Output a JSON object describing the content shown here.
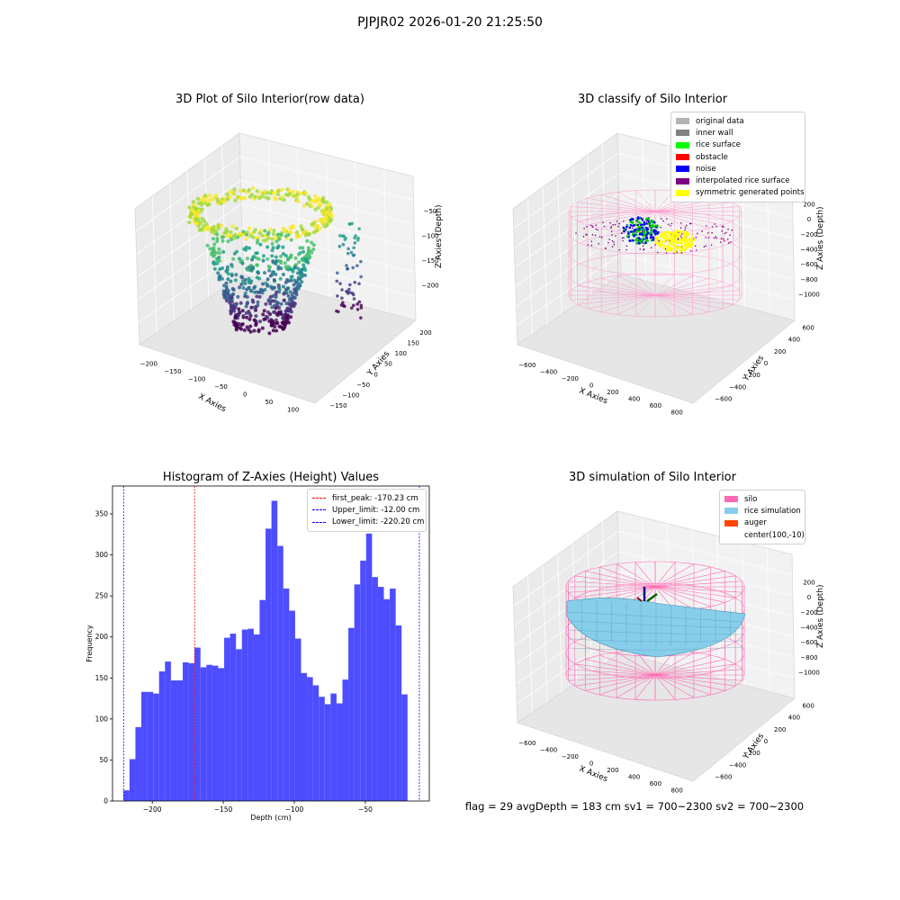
{
  "suptitle": "PJPJR02 2026-01-20 21:25:50",
  "status_text": "flag = 29  avgDepth = 183 cm  sv1 = 700~2300  sv2 = 700~2300",
  "chart_data": [
    {
      "type": "scatter3d",
      "title": "3D Plot of Silo Interior(row data)",
      "xlabel": "X Axies",
      "ylabel": "Y Axies",
      "zlabel": "Z Axies (Depth)",
      "x_ticks": [
        "−200",
        "−150",
        "−100",
        "−50",
        "0",
        "50",
        "100"
      ],
      "y_ticks": [
        "−150",
        "−100",
        "−50",
        "0",
        "50",
        "100",
        "150",
        "200"
      ],
      "z_ticks": [
        "−50",
        "−100",
        "−150",
        "−200"
      ],
      "xlim": [
        -230,
        130
      ],
      "ylim": [
        -160,
        230
      ],
      "zlim": [
        -230,
        -25
      ],
      "colormap": "viridis"
    },
    {
      "type": "scatter3d",
      "title": "3D classify of Silo Interior",
      "xlabel": "X Axies",
      "ylabel": "Y Axies",
      "zlabel": "Z Axies (Depth)",
      "x_ticks": [
        "−600",
        "−400",
        "−200",
        "0",
        "200",
        "400",
        "600",
        "800"
      ],
      "y_ticks": [
        "−600",
        "−400",
        "−200",
        "0",
        "200",
        "400",
        "600"
      ],
      "z_ticks": [
        "200",
        "0",
        "−200",
        "−400",
        "−600",
        "−800",
        "−1000"
      ],
      "legend": [
        {
          "label": "original data",
          "color": "#b3b3b3"
        },
        {
          "label": "inner wall",
          "color": "#808080"
        },
        {
          "label": "rice surface",
          "color": "#00ff00"
        },
        {
          "label": "obstacle",
          "color": "#ff0000"
        },
        {
          "label": "noise",
          "color": "#0000ff"
        },
        {
          "label": "interpolated rice surface",
          "color": "#800080"
        },
        {
          "label": "symmetric generated points",
          "color": "#ffff00"
        }
      ]
    },
    {
      "type": "bar",
      "title": "Histogram of Z-Axies (Height) Values",
      "xlabel": "Depth (cm)",
      "ylabel": "Frequency",
      "xlim": [
        -228,
        -5
      ],
      "ylim": [
        0,
        384
      ],
      "x_ticks": [
        -200,
        -150,
        -100,
        -50
      ],
      "x_tick_labels": [
        "−200",
        "−150",
        "−100",
        "−50"
      ],
      "y_ticks": [
        0,
        50,
        100,
        150,
        200,
        250,
        300,
        350
      ],
      "bin_start": -220.2,
      "bin_width": 4.164,
      "values": [
        13,
        51,
        90,
        133,
        133,
        131,
        158,
        170,
        147,
        147,
        169,
        168,
        187,
        163,
        166,
        165,
        162,
        199,
        204,
        185,
        209,
        210,
        203,
        245,
        332,
        366,
        311,
        259,
        232,
        198,
        156,
        151,
        141,
        127,
        118,
        131,
        119,
        148,
        211,
        264,
        293,
        326,
        273,
        261,
        246,
        259,
        214,
        130
      ],
      "bar_color": "#4d4dff",
      "vlines": [
        {
          "x": -170.23,
          "color": "#ff0000",
          "label": "first_peak: -170.23 cm"
        },
        {
          "x": -12.0,
          "color": "#0000ff",
          "label": "Upper_limit: -12.00 cm"
        },
        {
          "x": -220.2,
          "color": "#0000ff",
          "label": "Lower_limit: -220.20 cm"
        }
      ],
      "legend_position": "top-right"
    },
    {
      "type": "surface3d",
      "title": "3D simulation of Silo Interior",
      "xlabel": "X Axies",
      "ylabel": "Y Axies",
      "zlabel": "Z Axies (Depth)",
      "x_ticks": [
        "−600",
        "−400",
        "−200",
        "0",
        "200",
        "400",
        "600",
        "800"
      ],
      "y_ticks": [
        "−600",
        "−400",
        "−200",
        "0",
        "200",
        "400",
        "600"
      ],
      "z_ticks": [
        "200",
        "0",
        "−200",
        "−400",
        "−600",
        "−800",
        "−1000"
      ],
      "legend": [
        {
          "label": "silo",
          "color": "#ff69b4"
        },
        {
          "label": "rice simulation",
          "color": "#87ceeb"
        },
        {
          "label": "auger",
          "color": "#ff4500"
        },
        {
          "label": "center(100,-10)",
          "color": ""
        }
      ]
    }
  ]
}
